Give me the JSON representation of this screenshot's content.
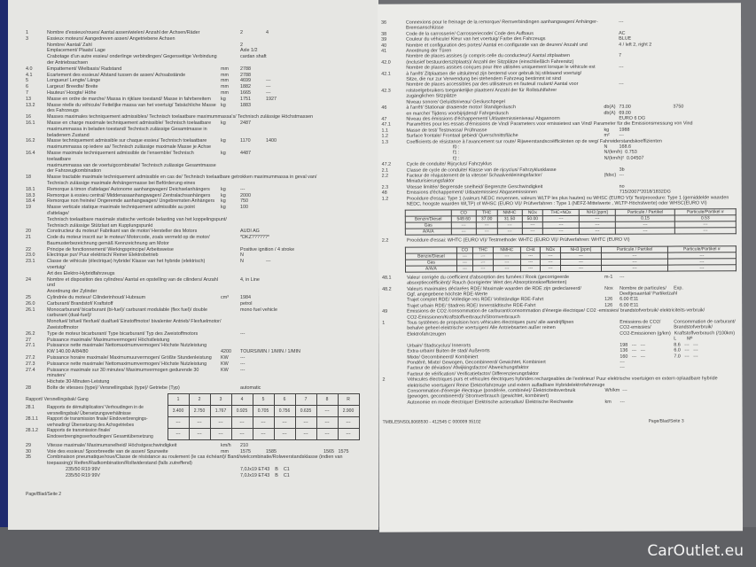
{
  "left_page": {
    "rows": [
      [
        "1",
        "Nombre d'essieux/roues/ Aantal assen/wielen/ Anzahl der Achsen/Räder",
        "",
        "2",
        "4"
      ],
      [
        "3",
        "Essieux moteurs/ Aangedreven assen/ Angetriebene Achsen",
        "",
        "",
        ""
      ],
      [
        "",
        "Nombre/ Aantal/ Zahl",
        "",
        "2",
        ""
      ],
      [
        "",
        "Emplacement/ Plaats/ Lage",
        "",
        "Axle 1/2",
        ""
      ],
      [
        "",
        "Crabotage d'un autre essieu/ onderlinge verbindingen/ Gegenseitige Verbindung",
        "",
        "cardan shaft",
        ""
      ],
      [
        "",
        "der Antriebsachsen",
        "",
        "",
        ""
      ],
      [
        "4.0",
        "Empattement/ Wielbasis/ Radstand",
        "mm",
        "2788",
        ""
      ],
      [
        "4.1",
        "Ecartement des essieux/ Afstand tussen de assen/ Achsabstände",
        "mm",
        "2788",
        ""
      ],
      [
        "5",
        "Longueur/ Lengte/ Länge",
        "mm",
        "4699",
        "---"
      ],
      [
        "6",
        "Largeur/ Breedte/ Breite",
        "mm",
        "1882",
        "---"
      ],
      [
        "7",
        "Hauteur/ Hoogte/ Höhe",
        "mm",
        "1665",
        "---"
      ],
      [
        "13",
        "Masse en ordre de marche/ Massa in rijklare toestand/ Masse in fahrbereitem",
        "kg",
        "1751",
        "1927"
      ],
      [
        "13.2",
        "Masse réelle du véhicule/ Feitelijke massa van het voertuig/ Tatsächliche Masse",
        "kg",
        "1883",
        ""
      ],
      [
        "",
        "des Fahrzeugs",
        "",
        "",
        ""
      ],
      [
        "16",
        "Masses maximales techniquement admissibles/ Technisch toelaatbare maximummassa's/ Technisch zulässige Höchstmassen",
        "",
        "",
        ""
      ],
      [
        "16.1",
        "Masse en charge maximale techniquement admissible/ Technisch toelaatbare",
        "kg",
        "2487",
        ""
      ],
      [
        "",
        "maximummassa in beladen toestand/ Technisch zulässige Gesamtmasse in",
        "",
        "",
        ""
      ],
      [
        "",
        "beladenem Zustand",
        "",
        "",
        ""
      ],
      [
        "16.2",
        "Masse techniquement admissible sur chaque essieu/ Technisch toelaatbare",
        "kg",
        "1170",
        "1400"
      ],
      [
        "",
        "maximummassa op iedere as/ Technisch zulässige maximale Masse je Achse",
        "",
        "",
        ""
      ],
      [
        "16.4",
        "Masse maximale techniquement admissible de l'ensemble/ Technisch toelaatbare",
        "kg",
        "4487",
        ""
      ],
      [
        "",
        "maximummassa van de voertuigcombinatie/ Technisch zulässige Gesamtmasse",
        "",
        "",
        ""
      ],
      [
        "",
        "der Fahrzeugkombination",
        "",
        "",
        ""
      ],
      [
        "18",
        "Masse tractable maximale techniquement admissible en cas de/ Technisch toelaatbare getrokken maximummassa in geval van/",
        "",
        "",
        ""
      ],
      [
        "",
        "Technisch zulässige maximale Anhängermasse bei Beförderung eines",
        "",
        "",
        ""
      ],
      [
        "18.1",
        "Remorque à timon d'attelage/ Autonome aanhangwagen/ Deichselanhängers",
        "kg",
        "---",
        ""
      ],
      [
        "18.3",
        "Remorque à essieu central/ Middenasaanhangwagen/ Zentralachsanhängers",
        "kg",
        "2000",
        ""
      ],
      [
        "18.4",
        "Remorque non freinée/ Ongeremde aanhangwagen/ Ungebremsten Anhängers",
        "kg",
        "750",
        ""
      ],
      [
        "19",
        "Masse verticale statique maximale techniquement admissible au point d'attelage/",
        "kg",
        "100",
        ""
      ],
      [
        "",
        "Technisch toelaatbare maximale statische verticale belasting van het koppelingspunt/",
        "",
        "",
        ""
      ],
      [
        "",
        "Technisch zulässige Stützlast am Kupplungspunkt",
        "",
        "",
        ""
      ],
      [
        "20",
        "Constructeur du moteur/ Fabrikant van de motor/ Hersteller des Motors",
        "",
        "AUDI AG",
        ""
      ],
      [
        "21",
        "Code du moteur inscrit sur le moteur/ Motorcode, zoals vermeld op de motor/",
        "",
        "*DKZ??????*",
        ""
      ],
      [
        "",
        "Baumusterbezeichnung gemäß Kennzeichnung am Motor",
        "",
        "",
        ""
      ],
      [
        "22",
        "Principe de fonctionnement/ Werkingsprincipe/ Arbeitsweise",
        "",
        "Positive ignition / 4 stroke",
        ""
      ],
      [
        "23.0",
        "Electrique pur/ Puur elektrisch/ Reiner Elektrobetrieb",
        "",
        "N",
        ""
      ],
      [
        "23.1",
        "Classe de véhicule (électrique) hybride/ Klasse van het hybride (elektrisch) voertuig/",
        "",
        "N",
        "---"
      ],
      [
        "",
        "Art des Elektro-Hybridfahrzeugs",
        "",
        "",
        ""
      ],
      [
        "24",
        "Nombre et disposition des cylindres/ Aantal en opstelling van de cilinders/ Anzahl und",
        "",
        "4, in Line",
        ""
      ],
      [
        "",
        "Anordnung der Zylinder",
        "",
        "",
        ""
      ],
      [
        "25",
        "Cylindrée du moteur/ Cilinderinhoud/ Hubraum",
        "cm³",
        "1984",
        ""
      ],
      [
        "26.0",
        "Carburant/ Brandstof/ Kraftstoff",
        "",
        "petrol",
        ""
      ],
      [
        "26.1",
        "Monocarburant/ bicarburant (bi-fuel)/ carburant modulable (flex fuel)/ double carburant (dual-fuel)/",
        "",
        "mono fuel vehicle",
        ""
      ],
      [
        "",
        "Monofuel/ bifuel/ flexfuel/ dualfuel/ Einstoffmotor/ bivalenter Antrieb/ Flexfuelmotor/",
        "",
        "",
        ""
      ],
      [
        "",
        "Zweistoffmotor",
        "",
        "",
        ""
      ],
      [
        "26.2",
        "Type de moteur bicarburant/ Type bicarburant/ Typ des Zweistoffmotors",
        "",
        "---",
        ""
      ],
      [
        "27",
        "Puissance maximale/ Maximumvermogen/ Höchstleistung",
        "",
        "",
        ""
      ],
      [
        "27.1",
        "Puissance nette maximale/ Nettomaximumvermogen/ Höchste Nutzleistung",
        "",
        "",
        ""
      ],
      [
        "",
        "KW 140.00 A/84/80",
        "4200",
        "TOURS/MIN / 1/MIN / 1/MIN",
        ""
      ],
      [
        "27.2",
        "Puissance horaire maximale/ Maximumuurvermogen/ Größte Stundenleistung",
        "KW",
        "---",
        ""
      ],
      [
        "27.3",
        "Puissance nette maximale/ Nettomaximumvermogen/ Höchste Nutzleistung",
        "KW",
        "---",
        ""
      ],
      [
        "27.4",
        "Puissance maximale sur 30 minutes/ Maximumvermogen gedurende 30 minuten/",
        "KW",
        "---",
        ""
      ],
      [
        "",
        "Höchste 30-Minuten-Leistung",
        "",
        "",
        ""
      ],
      [
        "28",
        "Boîte de vitesses (type)/ Versnellingsbak (type)/ Getriebe (Typ)",
        "",
        "automatic",
        ""
      ]
    ],
    "gear_rows": [
      [
        "Rapport/ Versnellingsbak/ Gang",
        ""
      ],
      [
        "28.1",
        "Rapports de démultiplication/ Verhoudingen in de versnellingsbak/ Übersetzungsverhältnisse"
      ],
      [
        "28.1.1",
        "Rapport de transmission finale/ Eindoverbrengings-verhouding/ Übersetzung des Achsgetriebes"
      ],
      [
        "28.1.2",
        "Rapports de transmission finale/ Eindoverbrengingsverhoudingen/ Gesamtübersetzung"
      ]
    ],
    "gear_table": [
      [
        "1",
        "2",
        "3",
        "4",
        "5",
        "6",
        "7",
        "8",
        "R"
      ],
      [
        "3.400",
        "2.750",
        "1.767",
        "0.925",
        "0.705",
        "0.756",
        "0.635",
        "---",
        "2.900"
      ],
      [
        "---",
        "---",
        "---",
        "---",
        "---",
        "---",
        "---",
        "---",
        "---"
      ],
      [
        "---",
        "---",
        "---",
        "---",
        "---",
        "---",
        "---",
        "---",
        "---"
      ]
    ],
    "rows2": [
      [
        "29",
        "Vitesse maximale/ Maximumsnelheid/ Höchstgeschwindigkeit",
        "km/h",
        "210",
        "",
        ""
      ],
      [
        "30",
        "Voie des essieux/ Spoorbreedte van de assen/ Spurweite",
        "mm",
        "1575",
        "1585",
        "1565   1575"
      ],
      [
        "35",
        "Combinaison pneumatique/roue/Classe de résistance au roulement (le cas échéant)/ Band/wielcombinatie/Rolweerstandsklasse (indien van",
        "",
        "",
        "",
        ""
      ],
      [
        "",
        "toepassing)/ Reifen/Radkombination/Rollwiderstand (falls zutreffend)",
        "",
        "",
        "",
        ""
      ],
      [
        "",
        "              235/50 R19 99V",
        "",
        "7,0Jx19 ET43    B    C1",
        "",
        ""
      ],
      [
        "",
        "              235/50 R19 99V",
        "",
        "7,0Jx19 ET43    B    C1",
        "",
        ""
      ]
    ],
    "footer": "Page/Blad/Seite 2"
  },
  "right_page": {
    "rows": [
      [
        "36",
        "Connexions pour le freinage de la remorque/ Remverbindingen aanhangwagen/ Anhänger-",
        "",
        "---",
        ""
      ],
      [
        "",
        "Bremsanschlüsse",
        "",
        "",
        ""
      ],
      [
        "38",
        "Code de la carrosserie/ Carrosseriecode/ Code des Aufbaus",
        "",
        "AC",
        ""
      ],
      [
        "39",
        "Couleur du véhicule/ Kleur van het voertuig/ Farbe des Fahrzeugs",
        "",
        "BLUE",
        ""
      ],
      [
        "40",
        "Nombre et configuration des portes/ Aantal en configuratie van de deuren/ Anzahl und",
        "",
        "4 / left 2, right 2",
        ""
      ],
      [
        "41",
        "Anordnung der Türen",
        "",
        "",
        ""
      ],
      [
        "",
        "Nombre de places assises (y compris celle du conducteur)/ Aantal zitplaatsen",
        "",
        "7",
        ""
      ],
      [
        "42.0",
        "(inclusief bestuurderszitplaats)/ Anzahl der Sitzplätze (einschließlich Fahrersitz)",
        "",
        "",
        ""
      ],
      [
        "",
        "Nombre de places assises conçues pour être utilisées uniquement lorsque le véhicule est",
        "",
        "---",
        ""
      ],
      [
        "42.1",
        "à l'arrêt/ Zitplaatsen die uitsluitend zijn bestemd voor gebruik bij stilstaand voertuig/",
        "",
        "",
        ""
      ],
      [
        "",
        "Sitze, die nur zur Verwendung bei stehendem Fahrzeug bestimmt ist sind",
        "",
        "",
        ""
      ],
      [
        "",
        "Nombre de places accessibles par des utilisateurs en fauteuil roulant/ Aantal voor",
        "",
        "---",
        ""
      ],
      [
        "42.3",
        "rolstoelgebruikers toegankelijke plaatsen/ Anzahl der für Rollstuhlfahrer",
        "",
        "",
        ""
      ],
      [
        "",
        "zugänglichen Sitzplätze",
        "",
        "",
        ""
      ],
      [
        "",
        "Niveau sonore/ Geluidsniveau/ Geräuschpegel",
        "",
        "",
        ""
      ],
      [
        "46",
        "à l'arrêt/ Stationair draaiende motor/ Standgeräusch",
        "db(A)",
        "73.00",
        "3750"
      ],
      [
        "",
        "en marche/ Tijdens voorbijrijdend/ Fahrgeräusch",
        "db(A)",
        "69.00",
        ""
      ],
      [
        "47",
        "Niveau des émissions d'échappement/ Uitlaatemissieniveau/ Abgasnorm",
        "",
        "EURO 6 DG",
        ""
      ],
      [
        "47.1",
        "Paramètres pour les essais d'émissions de Vind/ Parameters voor emissietest van Vind/ Parameter für die Emissionsmessung von Vind",
        "",
        "",
        ""
      ],
      [
        "1.1",
        "Masse de test/ Testmassa/ Prüfmasse",
        "kg",
        "1988",
        ""
      ],
      [
        "1.2",
        "Surface frontale/ Frontaal gebied/ Querschnittsfläche",
        "m²",
        "---",
        ""
      ],
      [
        "1.3",
        "Coefficients de résistance à l'avancement sur route/ Rijweerstandscoëfficiënten op de weg/ Fahrwiderstandskoeffizienten",
        "",
        "",
        ""
      ],
      [
        "",
        "                                   f0 :",
        "N",
        "168.6",
        ""
      ],
      [
        "",
        "                                   f1 :",
        "N/(km/h)",
        "0.753",
        ""
      ],
      [
        "",
        "                                   f2 :",
        "N/(km/h)²",
        "0.04507",
        ""
      ],
      [
        "47.2",
        "Cycle de conduite/ Rijcyclus/ Fahrzyklus",
        "",
        "",
        ""
      ],
      [
        "2.1",
        "Classe de cycle de conduite/ Klasse van de rijcyclus/ Fahrzyklusklasse",
        "",
        "3b",
        ""
      ],
      [
        "2.2",
        "Facteur de réajustement de la vitesse/ Schaalverkleiningsfactor/",
        "(fdsc)",
        "---",
        ""
      ],
      [
        "",
        "Miniaturisierungsfaktor",
        "",
        "",
        ""
      ],
      [
        "2.3",
        "Vitesse limitée/ Begrensde snelheid/ Begrenzte Geschwindigkeit",
        "",
        "no",
        ""
      ],
      [
        "48",
        "Emissions d'échappement/ Uitlaatemissies/ Abgasemissionen",
        "",
        "715/2007*2018/1832DG",
        ""
      ],
      [
        "1.2",
        "Procédure d'essai: Type 1 (valeurs NEDC moyennes, valeurs WLTP les plus hautes) ou WHSC (EURO VI)/ Testprocedure: Type 1 (gemiddelde waarden",
        "",
        "",
        ""
      ],
      [
        "",
        "NEDC, hoogste waarden WLTP) of WHSC (EURO VI)/ Prüfverfahren : Type 1 (NEFZ-Mittelwerte , WLTP-Höchstwerte) oder WHSC(EURO VI)",
        "",
        "",
        ""
      ]
    ],
    "emis_table1": [
      [
        "",
        "CO",
        "THC",
        "NMHC",
        "NOx",
        "THC+NOx",
        "NH3 [ppm]",
        "Particule / Partikel",
        "Particule/Partikel #"
      ],
      [
        "Benzin/Diesel",
        "549.60",
        "37.00",
        "31.50",
        "50.00",
        "---",
        "---",
        "0.15",
        "0.53"
      ],
      [
        "Gas",
        "---",
        "---",
        "---",
        "---",
        "---",
        "---",
        "---",
        "---"
      ],
      [
        "A/A/A",
        "---",
        "---",
        "---",
        "---",
        "---",
        "---",
        "---",
        "---"
      ]
    ],
    "whtc_row": [
      "2.2",
      "Procédure d'essai: WHTC (EURO VI)/ Testmethode: WHTC (EURO VI)/ Prüfverfahren: WHTC (EURO VI)"
    ],
    "emis_table2": [
      [
        "",
        "CO",
        "THC",
        "NMHC",
        "CH4",
        "NOx",
        "NH3 [ppm]",
        "Particule / Partikel",
        "Particule/Partikel #"
      ],
      [
        "Benzin/Diesel",
        "---",
        "---",
        "---",
        "---",
        "---",
        "---",
        "---",
        "---"
      ],
      [
        "Gas",
        "---",
        "---",
        "---",
        "---",
        "---",
        "---",
        "---",
        "---"
      ],
      [
        "A/A/A",
        "---",
        "---",
        "---",
        "---",
        "---",
        "---",
        "---",
        "---"
      ]
    ],
    "rows2": [
      [
        "48.1",
        "Valeur corrigée du coefficient d'absorption des fumées:/ Rook (gecorrigeerde",
        "m-1",
        "---",
        ""
      ],
      [
        "",
        "absorptiecoëfficiënt)/ Rauch (korrigierter Wert des Absorptionskoeffizienten)",
        "",
        "",
        ""
      ],
      [
        "48.2",
        "Valeurs maximales déclarées RDE/ Maximale waarden die RDE zijn gedeclareerd/",
        "Nox",
        "Nombre de particules/",
        "Exp."
      ],
      [
        "",
        "Ggf. angegebene höchste RDE-Werte",
        "",
        "Deeltjesaantal/ Partikelzahl",
        ""
      ],
      [
        "",
        "Trajet complet RDE/ Volledige reis RDE/ Vollständige RDE-Fahrt",
        "126",
        "6.00 E11",
        ""
      ],
      [
        "",
        "Trajet urbain RDE/ Stadreis RDE/ Innerstädtische RDE-Fahrt",
        "126",
        "6.00 E11",
        ""
      ],
      [
        "49",
        "Emissions de CO2 /consommation de carburant/consommation d'énergie électrique/ CO2 -emissies/ brandstofverbruik/ elektriciteits-verbruik/",
        "",
        "",
        ""
      ],
      [
        "",
        "CO2-Emissionen/Kraftstoffverbrauch/Stromverbrauch",
        "",
        "",
        ""
      ],
      [
        "1",
        "Tous systèmes de propulsion hors véhicules électriques purs/ alle aandrijflijnen",
        "",
        "Emissions de CO2/",
        "Consommation de carburant/"
      ],
      [
        "",
        "behalve geheel elektrische voertuigen/ Alle Antriebsarten außer reinen",
        "",
        "CO2-emissies/",
        "Brandstofverbruik/"
      ],
      [
        "",
        "Elektrofahrzeugen",
        "",
        "CO2-Emissionen (g/km)",
        "Kraftstoffverbrauch (/100km)"
      ],
      [
        "",
        "",
        "",
        "",
        "L        M³"
      ],
      [
        "",
        "Urbain/ Stadscyclus/ Innerorts",
        "",
        "198   ---   ---",
        "8.6   ---   ---"
      ],
      [
        "",
        "Extra-urbain/ Buiten de stad/ Außerorts",
        "",
        "136   ---   ---",
        "6.0   ---   ---"
      ],
      [
        "",
        "Mixte/ Gecombineerd/ Kombiniert",
        "",
        "160   ---   ---",
        "7.0   ---   ---"
      ],
      [
        "",
        "Pondéré, Mixte/ Gewogen, Gecombineerd/ Gewichtet, Kombiniert",
        "",
        "---",
        ""
      ],
      [
        "",
        "Facteur de déviation/ Afwijkingsfactor/ Abweichungsfaktor",
        "",
        "---",
        ""
      ],
      [
        "",
        "Facteur de vérification/ Verificatiefactor/ Differenzierungsfaktor",
        "",
        "",
        ""
      ],
      [
        "2",
        "Véhicules électriques purs et véhicules électriques hybrides rechargeables de l'extérieur/ Puur elektrische voertuigen en extern oplaadbare hybride",
        "",
        "",
        ""
      ],
      [
        "",
        "elektrische voertuigen/ Reine Elektrofahrzeuge und extern aufladbare Hybridelektrofahrzeuge",
        "",
        "",
        ""
      ],
      [
        "",
        "Consommation d'énergie électrique (pondérée, combinée)/ Elektriciteitsverbruik",
        "Wh/km",
        "---",
        ""
      ],
      [
        "",
        "(gewogen, gecombineerd)/ Stromverbrauch (gewichtet, kombiniert)",
        "",
        "",
        ""
      ],
      [
        "",
        "Autonomie en mode électrique/ Elektrische actieradius/ Elektrische Reichweite",
        "km",
        "---",
        ""
      ]
    ],
    "footer_id": "TMBLE5NS0L8068530 - 412545 C 000009    35102",
    "footer": "Page/Blad/Seite 3"
  },
  "watermark": "CarOutlet.eu"
}
